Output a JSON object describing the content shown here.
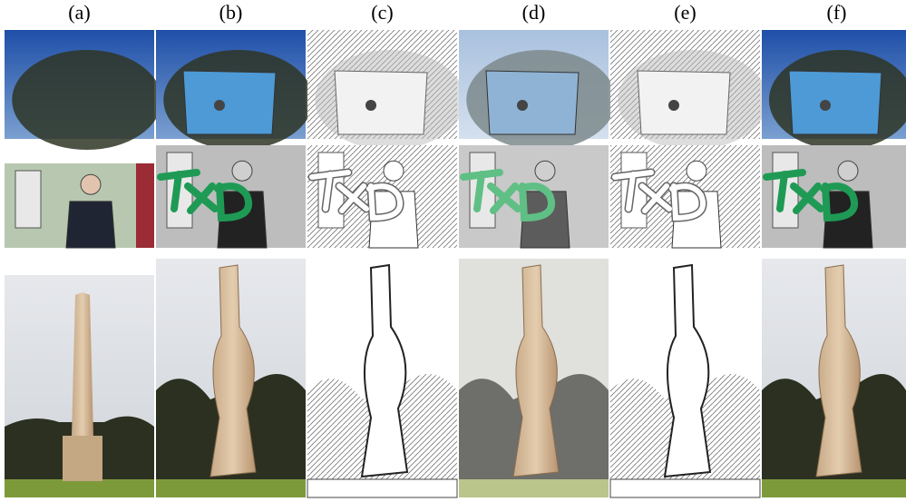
{
  "panel_labels": [
    "(a)",
    "(b)",
    "(c)",
    "(d)",
    "(e)",
    "(f)"
  ]
}
